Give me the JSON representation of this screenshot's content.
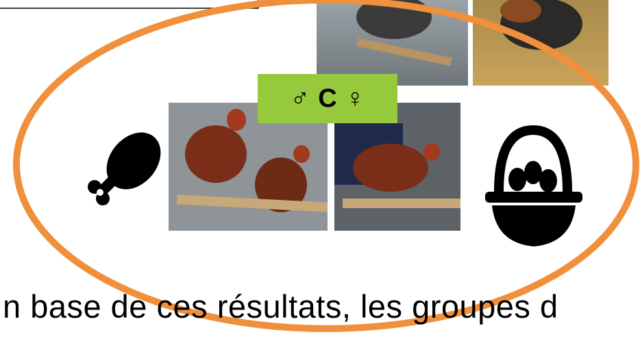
{
  "label": {
    "male": "♂",
    "code": "C",
    "female": "♀"
  },
  "caption": "n base de ces résultats, les groupes d"
}
